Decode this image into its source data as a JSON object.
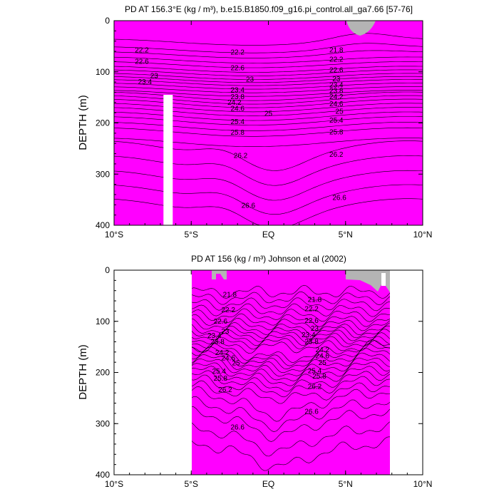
{
  "colors": {
    "levels": [
      "#ff00ff",
      "#d400ff",
      "#a01ae6",
      "#6428d2",
      "#1e28dc",
      "#0050f0",
      "#0078ff",
      "#00a0ff",
      "#00c8f0",
      "#00dcc8",
      "#00e696",
      "#00e650",
      "#3cf028",
      "#96f000",
      "#e6f000",
      "#ffdc00",
      "#ffc800",
      "#ffb400",
      "#ffa014",
      "#ff8c1e",
      "#ff7814",
      "#ff6400",
      "#ff4b00",
      "#ff3200",
      "#f51e00",
      "#eb1400",
      "#e10f00",
      "#d20a00",
      "#c80000"
    ],
    "land": "#b4b4b4"
  },
  "chart_data": [
    {
      "type": "contour",
      "title": "PD AT 156.3°E (kg / m³), b.e15.B1850.f09_g16.pi_control.all_ga7.66 [57-76]",
      "ylabel": "DEPTH (m)",
      "xlabel": "",
      "xlim": [
        -10,
        10
      ],
      "ylim": [
        400,
        0
      ],
      "xticks": [
        -10,
        -5,
        0,
        5,
        10
      ],
      "xtick_labels": [
        "10°S",
        "5°S",
        "EQ",
        "5°N",
        "10°N"
      ],
      "yticks": [
        0,
        100,
        200,
        300,
        400
      ],
      "ytick_labels": [
        "0",
        "100",
        "200",
        "300",
        "400"
      ],
      "data_xrange": [
        -10,
        10
      ],
      "levels_min": 21.8,
      "levels_step": 0.2,
      "missing_band": [
        -6.8,
        -6.2,
        145,
        400
      ],
      "contour_labels": [
        {
          "text": "22.2",
          "x": -8.2,
          "y": 58
        },
        {
          "text": "22.6",
          "x": -8.2,
          "y": 80
        },
        {
          "text": "23",
          "x": -7.4,
          "y": 108
        },
        {
          "text": "23.4",
          "x": -8.0,
          "y": 120
        },
        {
          "text": "22.2",
          "x": -2.0,
          "y": 62
        },
        {
          "text": "22.6",
          "x": -2.0,
          "y": 93
        },
        {
          "text": "23",
          "x": -1.2,
          "y": 115
        },
        {
          "text": "23.4",
          "x": -2.0,
          "y": 136
        },
        {
          "text": "23.8",
          "x": -2.0,
          "y": 149
        },
        {
          "text": "24.2",
          "x": -2.2,
          "y": 160
        },
        {
          "text": "24.6",
          "x": -2.0,
          "y": 172
        },
        {
          "text": "25",
          "x": 0,
          "y": 182
        },
        {
          "text": "25.4",
          "x": -2.0,
          "y": 198
        },
        {
          "text": "25.8",
          "x": -2.0,
          "y": 219
        },
        {
          "text": "26.2",
          "x": -1.8,
          "y": 264
        },
        {
          "text": "26.6",
          "x": -1.3,
          "y": 362
        },
        {
          "text": "21.8",
          "x": 4.4,
          "y": 58
        },
        {
          "text": "22.2",
          "x": 4.4,
          "y": 76
        },
        {
          "text": "22.6",
          "x": 4.4,
          "y": 97
        },
        {
          "text": "23",
          "x": 4.4,
          "y": 114
        },
        {
          "text": "23.4",
          "x": 4.4,
          "y": 126
        },
        {
          "text": "23.8",
          "x": 4.4,
          "y": 137
        },
        {
          "text": "24.2",
          "x": 4.4,
          "y": 149
        },
        {
          "text": "24.6",
          "x": 4.4,
          "y": 163
        },
        {
          "text": "25",
          "x": 4.6,
          "y": 178
        },
        {
          "text": "25.4",
          "x": 4.4,
          "y": 195
        },
        {
          "text": "25.8",
          "x": 4.4,
          "y": 218
        },
        {
          "text": "26.2",
          "x": 4.4,
          "y": 262
        },
        {
          "text": "26.6",
          "x": 4.6,
          "y": 346
        }
      ]
    },
    {
      "type": "contour",
      "title": "PD AT 156 (kg / m³) Johnson et al (2002)",
      "ylabel": "DEPTH (m)",
      "xlabel": "",
      "xlim": [
        -10,
        10
      ],
      "ylim": [
        400,
        0
      ],
      "xticks": [
        -10,
        -5,
        0,
        5,
        10
      ],
      "xtick_labels": [
        "10°S",
        "5°S",
        "EQ",
        "5°N",
        "10°N"
      ],
      "yticks": [
        0,
        100,
        200,
        300,
        400
      ],
      "ytick_labels": [
        "0",
        "100",
        "200",
        "300",
        "400"
      ],
      "data_xrange": [
        -5,
        8
      ],
      "levels_min": 21.8,
      "levels_step": 0.2,
      "contour_labels": [
        {
          "text": "21.8",
          "x": -2.5,
          "y": 48
        },
        {
          "text": "22.2",
          "x": -2.6,
          "y": 78
        },
        {
          "text": "22.6",
          "x": -3.1,
          "y": 100
        },
        {
          "text": "23",
          "x": -2.8,
          "y": 120
        },
        {
          "text": "23.4",
          "x": -3.5,
          "y": 128
        },
        {
          "text": "23.8",
          "x": -3.3,
          "y": 140
        },
        {
          "text": "24.2",
          "x": -3.0,
          "y": 162
        },
        {
          "text": "24.6",
          "x": -2.6,
          "y": 172
        },
        {
          "text": "25",
          "x": -2.1,
          "y": 182
        },
        {
          "text": "25.4",
          "x": -3.2,
          "y": 198
        },
        {
          "text": "25.8",
          "x": -3.1,
          "y": 212
        },
        {
          "text": "26.2",
          "x": -2.8,
          "y": 234
        },
        {
          "text": "26.6",
          "x": -2.0,
          "y": 307
        },
        {
          "text": "21.8",
          "x": 3.0,
          "y": 58
        },
        {
          "text": "22.2",
          "x": 2.8,
          "y": 76
        },
        {
          "text": "22.6",
          "x": 2.8,
          "y": 99
        },
        {
          "text": "23",
          "x": 3.0,
          "y": 114
        },
        {
          "text": "23.4",
          "x": 2.6,
          "y": 127
        },
        {
          "text": "23.8",
          "x": 2.8,
          "y": 140
        },
        {
          "text": "24.2",
          "x": 3.5,
          "y": 156
        },
        {
          "text": "24.6",
          "x": 3.5,
          "y": 168
        },
        {
          "text": "25",
          "x": 3.5,
          "y": 181
        },
        {
          "text": "25.4",
          "x": 3.0,
          "y": 197
        },
        {
          "text": "25.8",
          "x": 3.3,
          "y": 208
        },
        {
          "text": "26.2",
          "x": 3.0,
          "y": 228
        },
        {
          "text": "26.6",
          "x": 2.8,
          "y": 277
        }
      ]
    }
  ]
}
